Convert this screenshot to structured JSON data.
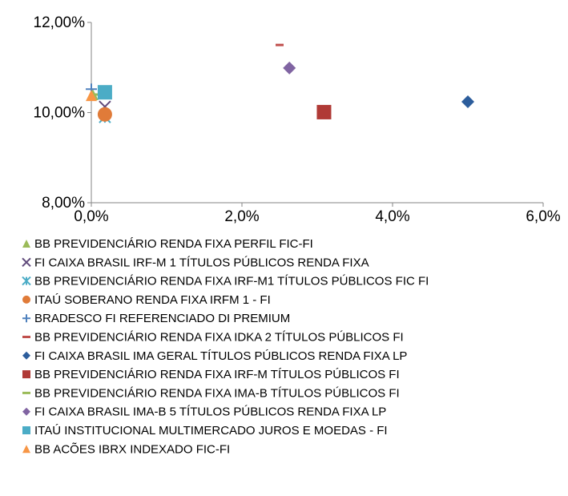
{
  "chart_data": {
    "type": "scatter",
    "xlim": [
      0,
      6
    ],
    "xticks": [
      {
        "value": 0,
        "label": "0,0%"
      },
      {
        "value": 2,
        "label": "2,0%"
      },
      {
        "value": 4,
        "label": "4,0%"
      },
      {
        "value": 6,
        "label": "6,0%"
      }
    ],
    "ylim": [
      8,
      12
    ],
    "yticks": [
      {
        "value": 8,
        "label": "8,00%"
      },
      {
        "value": 10,
        "label": "10,00%"
      },
      {
        "value": 12,
        "label": "12,00%"
      }
    ],
    "grid": false,
    "legend": "bottom",
    "series": [
      {
        "name": "BB PREVIDENCIÁRIO RENDA FIXA PERFIL FIC-FI",
        "color": "#9bbb59",
        "marker": "triangle",
        "x": [
          0.02
        ],
        "values": [
          10.4
        ]
      },
      {
        "name": "FI CAIXA BRASIL IRF-M 1 TÍTULOS PÚBLICOS RENDA FIXA",
        "color": "#604a7b",
        "marker": "x",
        "x": [
          0.18
        ],
        "values": [
          10.13
        ]
      },
      {
        "name": "BB PREVIDENCIÁRIO RENDA FIXA IRF-M1 TÍTULOS PÚBLICOS FIC FI",
        "color": "#4bacc6",
        "marker": "asterisk",
        "x": [
          0.18
        ],
        "values": [
          9.9
        ]
      },
      {
        "name": "ITAÚ SOBERANO RENDA FIXA IRFM 1 - FI",
        "color": "#e07b39",
        "marker": "circle",
        "x": [
          0.18
        ],
        "values": [
          9.96
        ]
      },
      {
        "name": "BRADESCO FI REFERENCIADO DI PREMIUM",
        "color": "#4f81bd",
        "marker": "plus",
        "x": [
          0.0
        ],
        "values": [
          10.52
        ]
      },
      {
        "name": "BB PREVIDENCIÁRIO RENDA FIXA IDKA 2 TÍTULOS PÚBLICOS FI",
        "color": "#c0504d",
        "marker": "dash",
        "x": [
          2.5
        ],
        "values": [
          11.5
        ]
      },
      {
        "name": "FI CAIXA BRASIL IMA GERAL TÍTULOS PÚBLICOS RENDA FIXA LP",
        "color": "#2c5d9c",
        "marker": "diamond",
        "x": [
          5.0
        ],
        "values": [
          10.24
        ]
      },
      {
        "name": "BB PREVIDENCIÁRIO RENDA FIXA IRF-M TÍTULOS PÚBLICOS FI",
        "color": "#b03a36",
        "marker": "square",
        "x": [
          3.09
        ],
        "values": [
          10.01
        ]
      },
      {
        "name": "BB PREVIDENCIÁRIO RENDA FIXA IMA-B TÍTULOS PÚBLICOS FI",
        "color": "#9bbb59",
        "marker": "dash",
        "x": [
          0.1
        ],
        "values": [
          10.4
        ]
      },
      {
        "name": "FI CAIXA BRASIL IMA-B 5 TÍTULOS PÚBLICOS RENDA FIXA LP",
        "color": "#8064a2",
        "marker": "diamond",
        "x": [
          2.63
        ],
        "values": [
          10.99
        ]
      },
      {
        "name": "ITAÚ INSTITUCIONAL MULTIMERCADO JUROS E MOEDAS - FI",
        "color": "#4bacc6",
        "marker": "square",
        "x": [
          0.18
        ],
        "values": [
          10.45
        ]
      },
      {
        "name": "BB ACÕES IBRX INDEXADO FIC-FI",
        "color": "#f79646",
        "marker": "triangle",
        "x": [
          0.0
        ],
        "values": [
          10.38
        ]
      }
    ]
  }
}
